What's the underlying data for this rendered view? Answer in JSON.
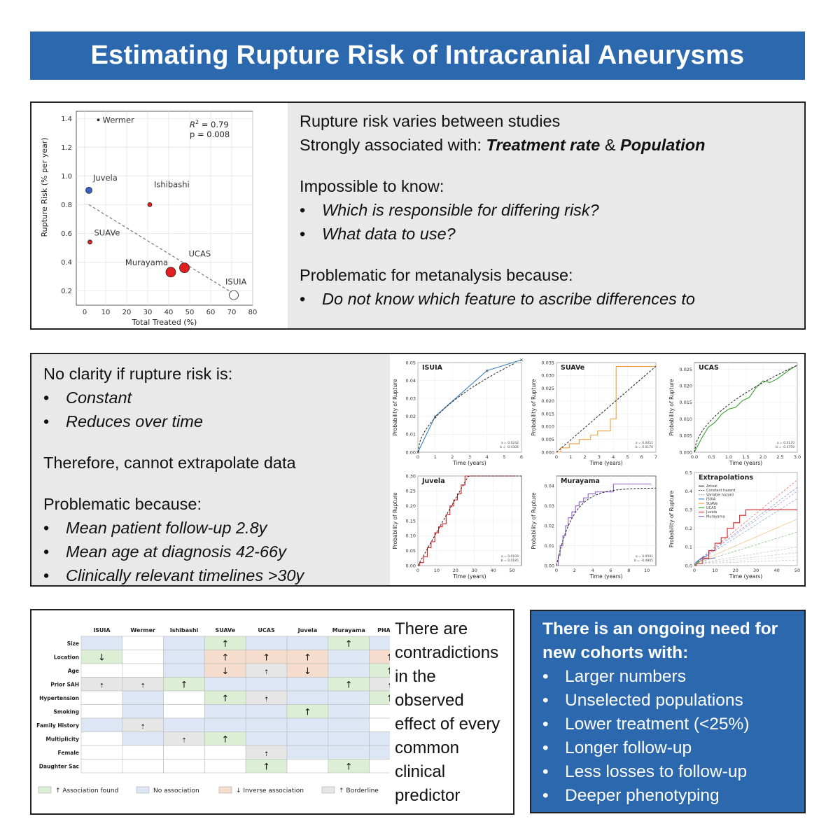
{
  "title": "Estimating Rupture Risk of Intracranial Aneurysms",
  "panel1": {
    "line1": "Rupture risk varies between studies",
    "line2_prefix": "Strongly associated with: ",
    "line2_a": "Treatment rate",
    "line2_amp": " & ",
    "line2_b": "Population",
    "impossible_heading": "Impossible to know:",
    "impossible_bullets": [
      "Which is responsible for differing risk?",
      "What data to use?"
    ],
    "meta_heading": "Problematic for metanalysis because:",
    "meta_bullets": [
      "Do not know which feature to ascribe differences to"
    ]
  },
  "panel2": {
    "clarity_heading": "No clarity if rupture risk is:",
    "clarity_bullets": [
      "Constant",
      "Reduces over time"
    ],
    "therefore": "Therefore, cannot extrapolate data",
    "problem_heading": "Problematic because:",
    "problem_bullets": [
      "Mean patient follow-up 2.8y",
      "Mean age at diagnosis 42-66y",
      "Clinically relevant timelines >30y"
    ]
  },
  "panel3": {
    "text_lines": [
      "There are",
      "contradictions",
      "in the",
      "observed",
      "effect of every",
      "common",
      "clinical",
      "predictor"
    ]
  },
  "panel4": {
    "heading_lines": [
      "There is an ongoing need for",
      "new cohorts with:"
    ],
    "bullets": [
      "Larger numbers",
      "Unselected populations",
      "Lower treatment (<25%)",
      "Longer follow-up",
      "Less losses to follow-up",
      "Deeper phenotyping"
    ]
  },
  "colors": {
    "title_bg": "#2b68ae",
    "panel_bg": "#e9e9e9",
    "assoc": "#dcefd4",
    "no_assoc": "#dce6f5",
    "inverse": "#f6dccc",
    "borderline": "#e6e6e6",
    "red": "#e02020",
    "blue": "#3a63c8",
    "orange": "#f0a040",
    "green": "#3aa030",
    "darkred": "#d02020",
    "purple": "#9060c8"
  },
  "chart_data": [
    {
      "type": "scatter",
      "xlabel": "Total Treated (%)",
      "ylabel": "Rupture Risk (% per year)",
      "xlim": [
        -4,
        80
      ],
      "ylim": [
        0.1,
        1.45
      ],
      "xticks": [
        0,
        10,
        20,
        30,
        40,
        50,
        60,
        70,
        80
      ],
      "yticks": [
        0.2,
        0.4,
        0.6,
        0.8,
        1.0,
        1.2,
        1.4
      ],
      "x_tick_labels": [
        "0",
        "10",
        "20",
        "30",
        "40",
        "50",
        "60",
        "70",
        "80"
      ],
      "y_tick_labels": [
        "0.2",
        "0.4",
        "0.6",
        "0.8",
        "1.0",
        "1.2",
        "1.4"
      ],
      "grid": true,
      "annotations": {
        "r2_base": "R",
        "r2_sup": "2",
        "r2_value": " = 0.79",
        "p_value": "p = 0.008"
      },
      "points": [
        {
          "name": "Wermer",
          "x": 6.5,
          "y": 1.39,
          "size": "tiny",
          "color": "#222"
        },
        {
          "name": "Juvela",
          "x": 2,
          "y": 0.9,
          "size": "medium",
          "color": "#3a63c8"
        },
        {
          "name": "Ishibashi",
          "x": 31,
          "y": 0.8,
          "size": "small",
          "color": "#e02020"
        },
        {
          "name": "SUAVe",
          "x": 2.5,
          "y": 0.54,
          "size": "small",
          "color": "#e02020"
        },
        {
          "name": "Murayama",
          "x": 41,
          "y": 0.33,
          "size": "large",
          "color": "#e02020"
        },
        {
          "name": "UCAS",
          "x": 47.5,
          "y": 0.36,
          "size": "large",
          "color": "#e02020"
        },
        {
          "name": "ISUIA",
          "x": 71,
          "y": 0.17,
          "size": "xlarge",
          "color": "#ffffff"
        }
      ],
      "trendline": [
        [
          2,
          0.8
        ],
        [
          71,
          0.18
        ]
      ]
    },
    {
      "type": "line",
      "title": "ISUIA",
      "xlabel": "Time (years)",
      "ylabel": "Probability of Rupture",
      "xlim": [
        0,
        6
      ],
      "ylim": [
        0,
        0.05
      ],
      "xticks": [
        0,
        1,
        2,
        3,
        4,
        5,
        6
      ],
      "yticks": [
        0.0,
        0.01,
        0.02,
        0.03,
        0.04,
        0.05
      ],
      "x_tick_labels": [
        "0",
        "1",
        "2",
        "3",
        "4",
        "5",
        "6"
      ],
      "y_tick_labels": [
        "0.00",
        "0.01",
        "0.02",
        "0.03",
        "0.04",
        "0.05"
      ],
      "params": [
        "a = 0.0242",
        "b = -0.4304"
      ],
      "series": [
        {
          "color": "#3a7fbf",
          "style": "solid",
          "x": [
            0,
            1,
            4,
            6
          ],
          "y": [
            0,
            0.02,
            0.0455,
            0.0515
          ]
        },
        {
          "color": "#222",
          "style": "dashed",
          "fn": "power",
          "a": 0.0242,
          "b": -0.4304
        }
      ]
    },
    {
      "type": "line",
      "title": "SUAVe",
      "xlabel": "Time (years)",
      "ylabel": "Probability of Rupture",
      "xlim": [
        0,
        7
      ],
      "ylim": [
        0,
        0.035
      ],
      "xticks": [
        0,
        1,
        2,
        3,
        4,
        5,
        6,
        7
      ],
      "yticks": [
        0.0,
        0.005,
        0.01,
        0.015,
        0.02,
        0.025,
        0.03,
        0.035
      ],
      "x_tick_labels": [
        "0",
        "1",
        "2",
        "3",
        "4",
        "5",
        "6",
        "7"
      ],
      "y_tick_labels": [
        "0.000",
        "0.005",
        "0.010",
        "0.015",
        "0.020",
        "0.025",
        "0.030",
        "0.035"
      ],
      "params": [
        "a = 0.0051",
        "b = 0.0170"
      ],
      "series": [
        {
          "color": "#f0a040",
          "style": "step",
          "x": [
            0.3,
            0.9,
            1.6,
            2.4,
            2.9,
            3.8,
            4.2,
            7
          ],
          "y": [
            0.0017,
            0.0033,
            0.005,
            0.0067,
            0.0083,
            0.013,
            0.0335,
            0.0335
          ]
        },
        {
          "color": "#222",
          "style": "dashed",
          "fn": "power",
          "a": 0.0051,
          "b": 0.017
        }
      ]
    },
    {
      "type": "line",
      "title": "UCAS",
      "xlabel": "Time (years)",
      "ylabel": "Probability of Rupture",
      "xlim": [
        0,
        3
      ],
      "ylim": [
        0,
        0.027
      ],
      "xticks": [
        0,
        0.5,
        1,
        1.5,
        2,
        2.5,
        3
      ],
      "yticks": [
        0.0,
        0.005,
        0.01,
        0.015,
        0.02,
        0.025
      ],
      "x_tick_labels": [
        "0.0",
        "0.5",
        "1.0",
        "1.5",
        "2.0",
        "2.5",
        "3.0"
      ],
      "y_tick_labels": [
        "0.000",
        "0.005",
        "0.010",
        "0.015",
        "0.020",
        "0.025"
      ],
      "params": [
        "a = 0.0170",
        "b = -0.4759"
      ],
      "series": [
        {
          "color": "#3aa030",
          "style": "solid",
          "x": [
            0,
            0.2,
            0.4,
            0.6,
            0.8,
            1.0,
            1.2,
            1.4,
            1.6,
            1.8,
            2.0,
            2.2,
            2.4,
            2.6,
            2.8,
            3.0
          ],
          "y": [
            0,
            0.004,
            0.0075,
            0.009,
            0.0115,
            0.013,
            0.0135,
            0.0155,
            0.0165,
            0.0195,
            0.0215,
            0.021,
            0.022,
            0.0235,
            0.025,
            0.0262
          ]
        },
        {
          "color": "#222",
          "style": "dashed",
          "fn": "power",
          "a": 0.017,
          "b": -0.4759
        }
      ]
    },
    {
      "type": "line",
      "title": "Juvela",
      "xlabel": "Time (years)",
      "ylabel": "Probability of Rupture",
      "xlim": [
        0,
        55
      ],
      "ylim": [
        0,
        0.3
      ],
      "xticks": [
        0,
        10,
        20,
        30,
        40,
        50
      ],
      "yticks": [
        0.0,
        0.05,
        0.1,
        0.15,
        0.2,
        0.25,
        0.3
      ],
      "x_tick_labels": [
        "0",
        "10",
        "20",
        "30",
        "40",
        "50"
      ],
      "y_tick_labels": [
        "0.00",
        "0.05",
        "0.10",
        "0.15",
        "0.20",
        "0.25",
        "0.30"
      ],
      "params": [
        "a = 0.0109",
        "b = 0.0185"
      ],
      "series": [
        {
          "color": "#d02020",
          "style": "step",
          "x": [
            1,
            3,
            5,
            7,
            9,
            11,
            13,
            15,
            17,
            19,
            21,
            23,
            25,
            52
          ],
          "y": [
            0.01,
            0.03,
            0.06,
            0.08,
            0.11,
            0.13,
            0.14,
            0.17,
            0.2,
            0.22,
            0.24,
            0.27,
            0.3,
            0.3
          ]
        },
        {
          "color": "#222",
          "style": "dashed",
          "fn": "linear",
          "slope": 0.0112
        }
      ]
    },
    {
      "type": "line",
      "title": "Murayama",
      "xlabel": "Time (years)",
      "ylabel": "Probability of Rupture",
      "xlim": [
        0,
        11
      ],
      "ylim": [
        0,
        0.045
      ],
      "xticks": [
        0,
        2,
        4,
        6,
        8,
        10
      ],
      "yticks": [
        0.0,
        0.01,
        0.02,
        0.03,
        0.04
      ],
      "x_tick_labels": [
        "0",
        "2",
        "4",
        "6",
        "8",
        "10"
      ],
      "y_tick_labels": [
        "0.00",
        "0.01",
        "0.02",
        "0.03",
        "0.04"
      ],
      "params": [
        "a = 0.0591",
        "b = -0.4805"
      ],
      "series": [
        {
          "color": "#9060c8",
          "style": "step",
          "x": [
            0.2,
            0.4,
            0.7,
            1.0,
            1.3,
            1.7,
            2.1,
            2.5,
            3.0,
            3.5,
            4.3,
            6.3,
            10.5
          ],
          "y": [
            0.005,
            0.01,
            0.015,
            0.02,
            0.024,
            0.027,
            0.03,
            0.032,
            0.034,
            0.036,
            0.037,
            0.041,
            0.041
          ]
        },
        {
          "color": "#222",
          "style": "dashed",
          "fn": "saturating",
          "max": 0.039,
          "k": 0.55
        }
      ]
    },
    {
      "type": "line",
      "title": "Extrapolations",
      "xlabel": "Time (years)",
      "ylabel": "Probability of Rupture",
      "xlim": [
        0,
        50
      ],
      "ylim": [
        0,
        0.5
      ],
      "xticks": [
        0,
        10,
        20,
        30,
        40,
        50
      ],
      "yticks": [
        0.0,
        0.1,
        0.2,
        0.3,
        0.4,
        0.5
      ],
      "x_tick_labels": [
        "0",
        "10",
        "20",
        "30",
        "40",
        "50"
      ],
      "y_tick_labels": [
        "0.0",
        "0.1",
        "0.2",
        "0.3",
        "0.4",
        "0.5"
      ],
      "legend": [
        "Actual",
        "Constant hazard",
        "Variable hazard",
        "ISUIA",
        "SUAVe",
        "UCAS",
        "Juvela",
        "Murayama"
      ],
      "legend_colors": [
        "#222",
        "#666",
        "#aaa",
        "#3a7fbf",
        "#f0a040",
        "#3aa030",
        "#d02020",
        "#9060c8"
      ],
      "series": [
        {
          "name": "Juvela",
          "color": "#d02020",
          "style": "step",
          "x": [
            1,
            4,
            7,
            10,
            13,
            16,
            19,
            22,
            25,
            50
          ],
          "y": [
            0.01,
            0.04,
            0.08,
            0.12,
            0.15,
            0.2,
            0.23,
            0.27,
            0.3,
            0.3
          ]
        },
        {
          "name": "ISUIA",
          "color": "#3a7fbf",
          "style": "solid",
          "x": [
            0,
            1,
            4,
            6
          ],
          "y": [
            0,
            0.02,
            0.045,
            0.05
          ]
        },
        {
          "name": "Murayama",
          "color": "#9060c8",
          "style": "solid",
          "x": [
            0,
            2,
            5,
            10
          ],
          "y": [
            0,
            0.02,
            0.035,
            0.041
          ]
        },
        {
          "name": "UCAS",
          "color": "#3aa030",
          "style": "solid",
          "x": [
            0,
            1,
            2,
            3
          ],
          "y": [
            0,
            0.013,
            0.021,
            0.026
          ]
        }
      ],
      "extrapolations": [
        {
          "color": "#d02020",
          "style": "dashed",
          "end": 0.46
        },
        {
          "color": "#3a63c8",
          "style": "dashed",
          "end": 0.42
        },
        {
          "color": "#9060c8",
          "style": "dashed",
          "end": 0.4
        },
        {
          "color": "#3a7fbf",
          "style": "dashed",
          "end": 0.36
        },
        {
          "color": "#f0a040",
          "style": "solid",
          "end": 0.25
        },
        {
          "color": "#3aa030",
          "style": "dashed",
          "end": 0.18
        },
        {
          "color": "#aaa",
          "style": "dashed",
          "end": 0.1
        },
        {
          "color": "#aaa",
          "style": "dashed",
          "end": 0.07
        },
        {
          "color": "#ccc",
          "style": "dashed",
          "end": 0.05
        },
        {
          "color": "#aaa",
          "style": "dashed",
          "end": 0.03
        }
      ]
    },
    {
      "type": "table",
      "columns": [
        "ISUIA",
        "Wermer",
        "Ishibashi",
        "SUAVe",
        "UCAS",
        "Juvela",
        "Murayama",
        "PHASES"
      ],
      "rows": [
        {
          "label": "Size",
          "cells": [
            "N",
            "",
            "N",
            "A",
            "N",
            "N",
            "A",
            "N"
          ],
          "arrows": [
            "",
            "",
            "",
            "↑",
            "",
            "",
            "↑",
            ""
          ]
        },
        {
          "label": "Location",
          "cells": [
            "A",
            "",
            "N",
            "I",
            "I",
            "I",
            "N",
            "I"
          ],
          "arrows": [
            "↓",
            "",
            "",
            "↑",
            "↑",
            "↑",
            "",
            "↑"
          ]
        },
        {
          "label": "Age",
          "cells": [
            "",
            "",
            "N",
            "I",
            "B",
            "I",
            "N",
            "A"
          ],
          "arrows": [
            "",
            "",
            "",
            "↓",
            "⇡",
            "↓",
            "",
            "↑"
          ]
        },
        {
          "label": "Prior SAH",
          "cells": [
            "B",
            "B",
            "A",
            "N",
            "N",
            "N",
            "A",
            "B"
          ],
          "arrows": [
            "⇡",
            "⇡",
            "↑",
            "",
            "",
            "",
            "↑",
            "⇡"
          ]
        },
        {
          "label": "Hypertension",
          "cells": [
            "",
            "N",
            "",
            "A",
            "B",
            "N",
            "N",
            "A"
          ],
          "arrows": [
            "",
            "",
            "",
            "↑",
            "⇡",
            "",
            "",
            "↑"
          ]
        },
        {
          "label": "Smoking",
          "cells": [
            "",
            "N",
            "",
            "N",
            "N",
            "A",
            "N",
            ""
          ],
          "arrows": [
            "",
            "",
            "",
            "",
            "",
            "↑",
            "",
            ""
          ]
        },
        {
          "label": "Family History",
          "cells": [
            "N",
            "B",
            "N",
            "N",
            "N",
            "N",
            "N",
            ""
          ],
          "arrows": [
            "",
            "⇡",
            "",
            "",
            "",
            "",
            "",
            ""
          ]
        },
        {
          "label": "Multiplicity",
          "cells": [
            "",
            "N",
            "B",
            "A",
            "N",
            "N",
            "N",
            "N"
          ],
          "arrows": [
            "",
            "",
            "⇡",
            "↑",
            "",
            "",
            "",
            ""
          ]
        },
        {
          "label": "Female",
          "cells": [
            "",
            "",
            "",
            "",
            "B",
            "N",
            "N",
            "N"
          ],
          "arrows": [
            "",
            "",
            "",
            "",
            "⇡",
            "",
            "",
            ""
          ]
        },
        {
          "label": "Daughter Sac",
          "cells": [
            "",
            "",
            "",
            "",
            "A",
            "",
            "A",
            ""
          ],
          "arrows": [
            "",
            "",
            "",
            "",
            "↑",
            "",
            "↑",
            ""
          ]
        }
      ],
      "legend": [
        {
          "key": "A",
          "label": "↑ Association found"
        },
        {
          "key": "N",
          "label": "No association"
        },
        {
          "key": "I",
          "label": "↓ Inverse association"
        },
        {
          "key": "B",
          "label": "⇡ Borderline"
        }
      ]
    }
  ]
}
